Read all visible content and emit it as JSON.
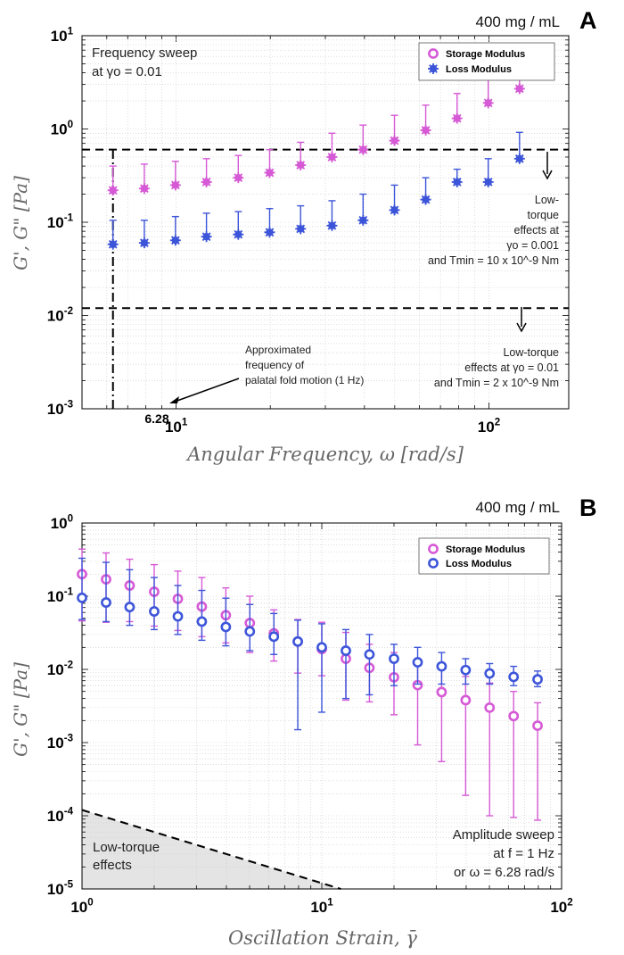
{
  "colors": {
    "storage": "#d65ad6",
    "loss": "#3d55d9",
    "axis": "#000000",
    "grid": "#c9c9c9",
    "shade": "#e4e4e4"
  },
  "chart_data": [
    {
      "panel_letter": "A",
      "type": "scatter",
      "concentration": "400 mg / mL",
      "title": "Frequency sweep",
      "subtitle": "at γo = 0.01",
      "xlabel": "Angular Frequency, ω [rad/s]",
      "ylabel": "G', G\" [Pa]",
      "xscale": "log",
      "yscale": "log",
      "xlim": [
        5,
        180
      ],
      "ylim": [
        0.001,
        10
      ],
      "x_tick_labels": [
        "10^1",
        "10^2"
      ],
      "y_tick_labels": [
        "10^-3",
        "10^-2",
        "10^-1",
        "10^0",
        "10^1"
      ],
      "legend": [
        "Storage Modulus",
        "Loss Modulus"
      ],
      "legend_position": "top-right",
      "series": [
        {
          "name": "Storage Modulus",
          "x": [
            6.28,
            7.91,
            9.95,
            12.5,
            15.8,
            19.9,
            25.0,
            31.5,
            39.6,
            49.9,
            62.8,
            79.1,
            99.5,
            125.3
          ],
          "y": [
            0.22,
            0.23,
            0.25,
            0.27,
            0.3,
            0.34,
            0.41,
            0.5,
            0.6,
            0.75,
            0.97,
            1.3,
            1.9,
            2.7
          ],
          "err_upper": [
            0.4,
            0.42,
            0.45,
            0.48,
            0.52,
            0.6,
            0.72,
            0.9,
            1.1,
            1.4,
            1.8,
            2.4,
            3.4,
            4.6
          ]
        },
        {
          "name": "Loss Modulus",
          "x": [
            6.28,
            7.91,
            9.95,
            12.5,
            15.8,
            19.9,
            25.0,
            31.5,
            39.6,
            49.9,
            62.8,
            79.1,
            99.5,
            125.3
          ],
          "y": [
            0.058,
            0.06,
            0.064,
            0.07,
            0.074,
            0.078,
            0.085,
            0.092,
            0.105,
            0.135,
            0.175,
            0.27,
            0.27,
            0.48
          ],
          "err_upper": [
            0.105,
            0.105,
            0.115,
            0.125,
            0.13,
            0.14,
            0.15,
            0.17,
            0.2,
            0.25,
            0.3,
            0.37,
            0.48,
            0.92
          ]
        }
      ],
      "reference_lines": [
        {
          "type": "horizontal",
          "y": 0.6,
          "style": "dashed"
        },
        {
          "type": "horizontal",
          "y": 0.012,
          "style": "dashed"
        },
        {
          "type": "vertical",
          "x": 6.28,
          "style": "dash-dot"
        }
      ],
      "annotations": [
        {
          "id": "marker",
          "text": "6.28"
        },
        {
          "id": "fold",
          "lines": [
            "Approximated",
            "frequency of",
            "palatal fold motion (1 Hz)"
          ]
        },
        {
          "id": "lowtorque1",
          "lines": [
            "Low-",
            "torque",
            "effects at",
            "γo = 0.001",
            "and Tmin = 10 x 10^-9 Nm"
          ]
        },
        {
          "id": "lowtorque2",
          "lines": [
            "Low-torque",
            "effects at γo = 0.01",
            "and Tmin = 2 x 10^-9 Nm"
          ]
        }
      ]
    },
    {
      "panel_letter": "B",
      "type": "scatter",
      "concentration": "400 mg / mL",
      "xlabel": "Oscillation Strain, γ̄",
      "ylabel": "G', G\" [Pa]",
      "xscale": "log",
      "yscale": "log",
      "xlim": [
        1,
        100
      ],
      "ylim": [
        1e-05,
        1
      ],
      "x_tick_labels": [
        "10^0",
        "10^1",
        "10^2"
      ],
      "y_tick_labels": [
        "10^-5",
        "10^-4",
        "10^-3",
        "10^-2",
        "10^-1",
        "10^0"
      ],
      "legend": [
        "Storage Modulus",
        "Loss Modulus"
      ],
      "legend_position": "top-right",
      "series": [
        {
          "name": "Storage Modulus",
          "x": [
            1.0,
            1.26,
            1.58,
            2.0,
            2.51,
            3.16,
            3.98,
            5.01,
            6.31,
            7.94,
            10.0,
            12.6,
            15.8,
            20.0,
            25.1,
            31.6,
            39.8,
            50.1,
            63.1,
            79.4
          ],
          "y": [
            0.2,
            0.17,
            0.14,
            0.115,
            0.092,
            0.072,
            0.055,
            0.043,
            0.031,
            0.024,
            0.019,
            0.014,
            0.0105,
            0.0078,
            0.0061,
            0.0049,
            0.0038,
            0.003,
            0.0023,
            0.0017
          ],
          "err_upper": [
            0.44,
            0.39,
            0.32,
            0.27,
            0.22,
            0.18,
            0.13,
            0.1,
            0.065,
            0.048,
            0.044,
            0.032,
            0.022,
            0.017,
            0.013,
            0.01,
            0.008,
            0.0065,
            0.005,
            0.0035
          ],
          "err_lower": [
            0.046,
            0.044,
            0.045,
            0.039,
            0.034,
            0.028,
            0.023,
            0.017,
            0.013,
            0.0089,
            0.0082,
            0.0038,
            0.0036,
            0.0024,
            0.00093,
            0.00055,
            0.00019,
            0.0001,
            9.5e-05,
            8.7e-05
          ]
        },
        {
          "name": "Loss Modulus",
          "x": [
            1.0,
            1.26,
            1.58,
            2.0,
            2.51,
            3.16,
            3.98,
            5.01,
            6.31,
            7.94,
            10.0,
            12.6,
            15.8,
            20.0,
            25.1,
            31.6,
            39.8,
            50.1,
            63.1,
            79.4
          ],
          "y": [
            0.095,
            0.082,
            0.071,
            0.062,
            0.053,
            0.045,
            0.038,
            0.033,
            0.028,
            0.024,
            0.02,
            0.018,
            0.016,
            0.014,
            0.0125,
            0.011,
            0.0098,
            0.0088,
            0.0079,
            0.0073
          ],
          "err_upper": [
            0.33,
            0.29,
            0.23,
            0.18,
            0.14,
            0.12,
            0.094,
            0.077,
            0.058,
            0.047,
            0.042,
            0.035,
            0.03,
            0.022,
            0.02,
            0.017,
            0.014,
            0.012,
            0.011,
            0.0095
          ],
          "err_lower": [
            0.048,
            0.045,
            0.04,
            0.035,
            0.03,
            0.025,
            0.021,
            0.018,
            0.016,
            0.0015,
            0.0026,
            0.004,
            0.0045,
            0.006,
            0.0063,
            0.0063,
            0.0063,
            0.0063,
            0.006,
            0.0058
          ]
        }
      ],
      "reference_lines": [
        {
          "type": "diagonal",
          "from": [
            1.0,
            0.00012
          ],
          "to": [
            12.0,
            1e-05
          ],
          "style": "dashed",
          "shade_below": true
        }
      ],
      "annotations": [
        {
          "id": "lowtorque",
          "lines": [
            "Low-torque",
            "effects"
          ]
        },
        {
          "id": "amplitude",
          "lines": [
            "Amplitude sweep",
            "at f = 1 Hz",
            "or ω = 6.28 rad/s"
          ]
        }
      ]
    }
  ]
}
